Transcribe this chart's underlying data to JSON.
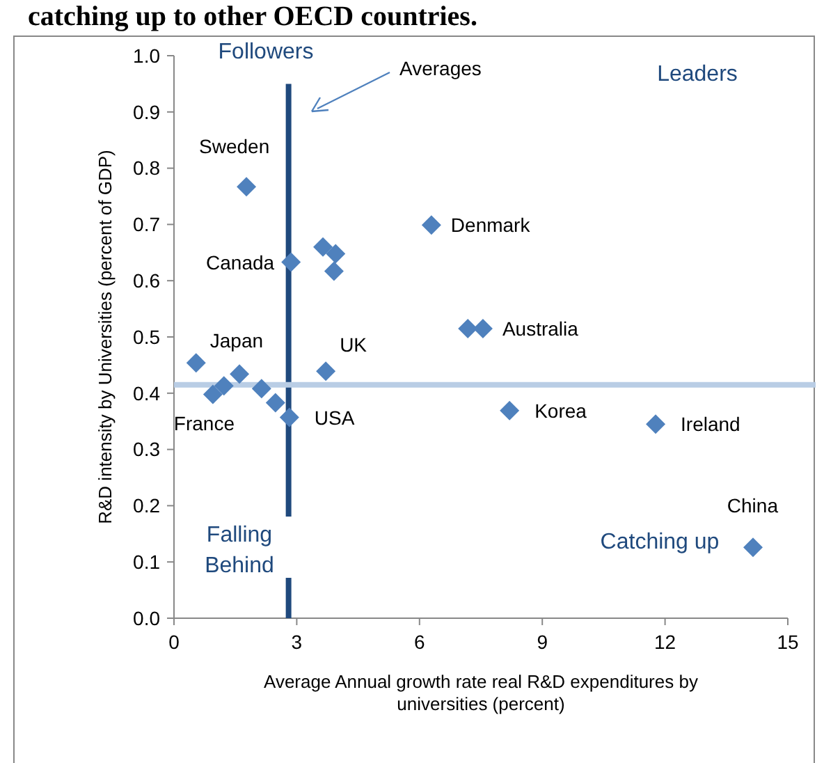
{
  "chart_data": {
    "type": "scatter",
    "title": "catching up to other OECD countries.",
    "xlabel": "Average Annual growth rate real R&D expenditures by universities (percent)",
    "ylabel": "R&D intensity by Universities  (percent of GDP)",
    "x": [
      1.77,
      2.86,
      3.64,
      3.95,
      3.91,
      6.29,
      7.18,
      7.55,
      0.54,
      3.71,
      1.6,
      1.22,
      0.95,
      2.14,
      2.48,
      2.82,
      8.2,
      11.77,
      14.15
    ],
    "values": [
      0.767,
      0.633,
      0.66,
      0.648,
      0.617,
      0.699,
      0.515,
      0.515,
      0.454,
      0.439,
      0.434,
      0.413,
      0.398,
      0.408,
      0.383,
      0.357,
      0.369,
      0.345,
      0.126
    ],
    "value_labels": [
      "Sweden",
      "Canada",
      null,
      null,
      null,
      "Denmark",
      null,
      "Australia",
      "Japan",
      "UK",
      null,
      null,
      "France",
      null,
      null,
      "USA",
      "Korea",
      "Ireland",
      "China"
    ],
    "color": "#4f81bd",
    "marker": "diamond",
    "xlim": [
      0,
      15
    ],
    "xticks": [
      0,
      3,
      6,
      9,
      12,
      15
    ],
    "ylim": [
      0,
      1
    ],
    "yticks": [
      {
        "value": 0,
        "label": "0.0"
      },
      {
        "value": 0.1,
        "label": "0.1"
      },
      {
        "value": 0.2,
        "label": "0.2"
      },
      {
        "value": 0.3,
        "label": "0.3"
      },
      {
        "value": 0.4,
        "label": "0.4"
      },
      {
        "value": 0.5,
        "label": "0.5"
      },
      {
        "value": 0.6,
        "label": "0.6"
      },
      {
        "value": 0.7,
        "label": "0.7"
      },
      {
        "value": 0.8,
        "label": "0.8"
      },
      {
        "value": 0.9,
        "label": "0.9"
      },
      {
        "value": 1,
        "label": "1.0"
      }
    ],
    "ref_lines": [
      {
        "axis": "x",
        "value": 2.8,
        "color": "#1f497d"
      },
      {
        "axis": "y",
        "value": 0.415,
        "color": "#b9cde5"
      }
    ],
    "annotations": [
      "Followers",
      "Leaders",
      "Falling Behind",
      "Catching up",
      "Averages"
    ]
  }
}
